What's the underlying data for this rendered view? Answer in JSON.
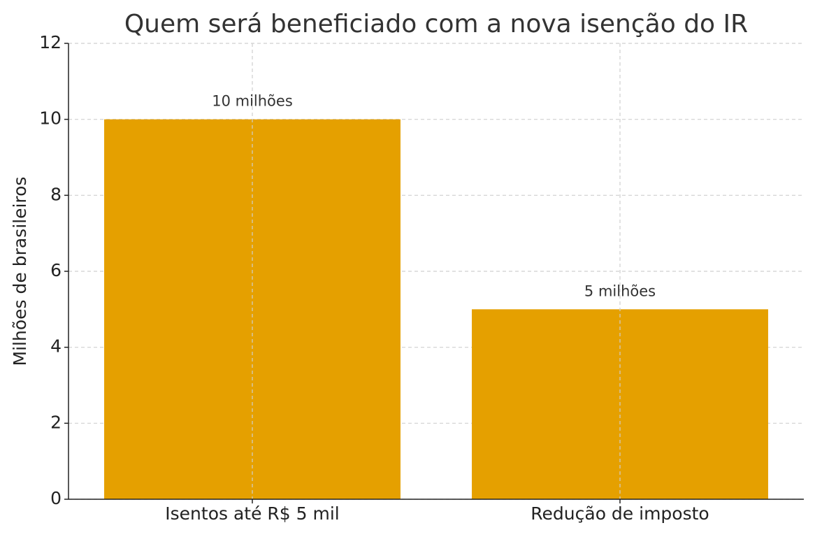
{
  "chart_data": {
    "type": "bar",
    "title": "Quem será beneficiado com a nova isenção do IR",
    "y_label": "Milhões de brasileiros",
    "categories": [
      "Isentos até R$ 5 mil",
      "Redução de imposto"
    ],
    "values": [
      10,
      5
    ],
    "value_labels": [
      "10 milhões",
      "5 milhões"
    ],
    "color": "#e5a000",
    "ylim": [
      0,
      12
    ],
    "yticks": [
      0,
      2,
      4,
      6,
      8,
      10,
      12
    ],
    "grid": true
  }
}
